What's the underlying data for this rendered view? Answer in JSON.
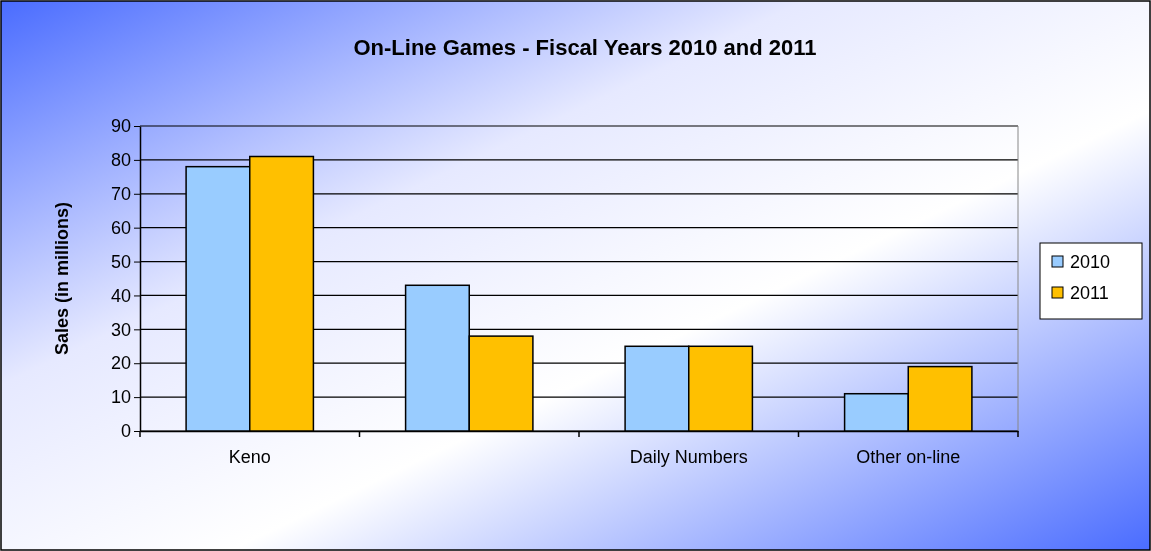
{
  "chart_data": {
    "type": "bar",
    "title": "On-Line Games - Fiscal Years 2010 and 2011",
    "ylabel": "Sales (in millions)",
    "categories": [
      "Keno",
      null,
      "Daily Numbers",
      "Other on-line"
    ],
    "series": [
      {
        "name": "2010",
        "color": "#99ccff",
        "values": [
          78,
          43,
          25,
          11
        ]
      },
      {
        "name": "2011",
        "color": "#ffc000",
        "values": [
          81,
          28,
          25,
          19
        ]
      }
    ],
    "ylim": [
      0,
      90
    ],
    "yticks": [
      0,
      10,
      20,
      30,
      40,
      50,
      60,
      70,
      80,
      90
    ],
    "grid": "y",
    "legend": "right"
  }
}
